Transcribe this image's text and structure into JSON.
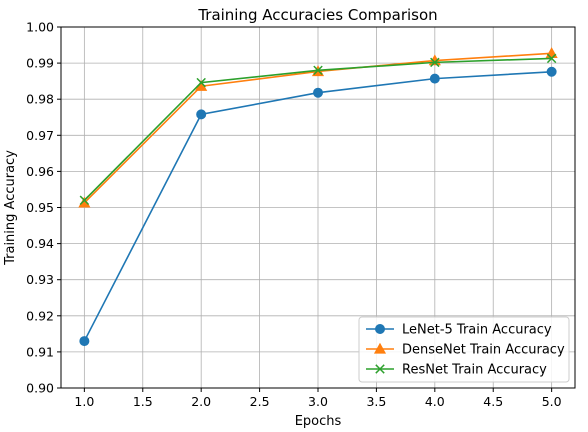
{
  "chart_data": {
    "type": "line",
    "title": "Training Accuracies Comparison",
    "xlabel": "Epochs",
    "ylabel": "Training Accuracy",
    "x": [
      1,
      2,
      3,
      4,
      5
    ],
    "xlim": [
      0.8,
      5.2
    ],
    "ylim": [
      0.9,
      1.0
    ],
    "xticks": [
      1.0,
      1.5,
      2.0,
      2.5,
      3.0,
      3.5,
      4.0,
      4.5,
      5.0
    ],
    "xtick_labels": [
      "1.0",
      "1.5",
      "2.0",
      "2.5",
      "3.0",
      "3.5",
      "4.0",
      "4.5",
      "5.0"
    ],
    "yticks": [
      0.9,
      0.91,
      0.92,
      0.93,
      0.94,
      0.95,
      0.96,
      0.97,
      0.98,
      0.99,
      1.0
    ],
    "ytick_labels": [
      "0.90",
      "0.91",
      "0.92",
      "0.93",
      "0.94",
      "0.95",
      "0.96",
      "0.97",
      "0.98",
      "0.99",
      "1.00"
    ],
    "grid": true,
    "legend_position": "bottom-right",
    "series": [
      {
        "name": "LeNet-5 Train Accuracy",
        "color": "#1f77b4",
        "marker": "circle",
        "values": [
          0.913,
          0.9758,
          0.9818,
          0.9857,
          0.9876
        ]
      },
      {
        "name": "DenseNet Train Accuracy",
        "color": "#ff7f0e",
        "marker": "triangle",
        "values": [
          0.9513,
          0.9836,
          0.9877,
          0.9907,
          0.9927
        ]
      },
      {
        "name": "ResNet Train Accuracy",
        "color": "#2ca02c",
        "marker": "x",
        "values": [
          0.952,
          0.9846,
          0.988,
          0.9902,
          0.9913
        ]
      }
    ]
  }
}
